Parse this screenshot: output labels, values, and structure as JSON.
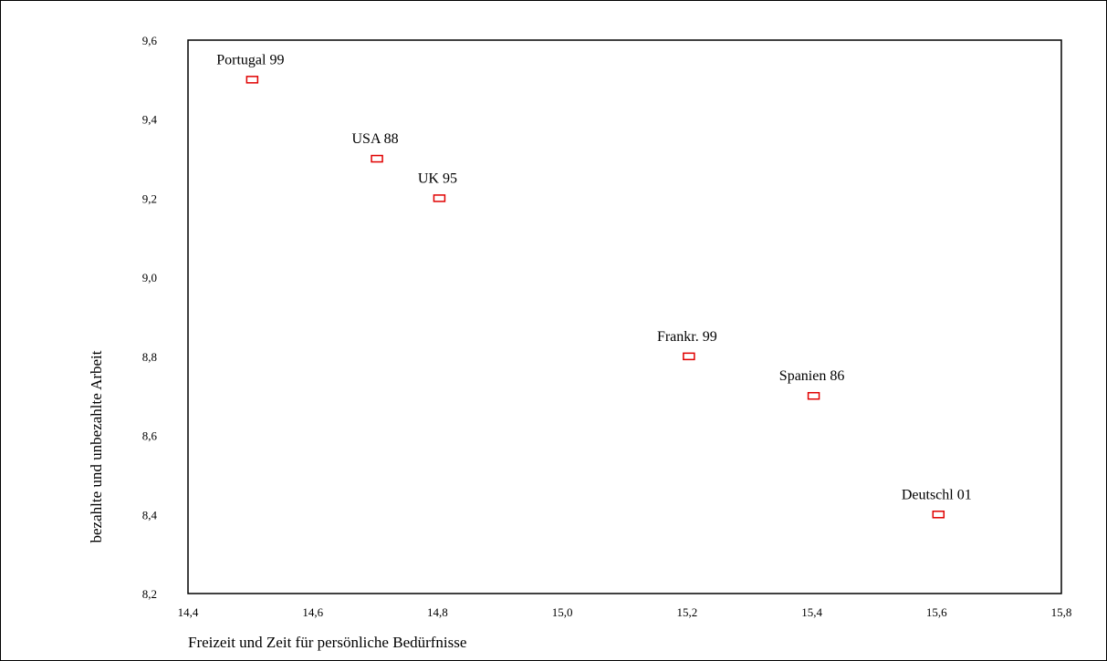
{
  "chart_data": {
    "type": "scatter",
    "xlabel": "Freizeit und Zeit für persönliche Bedürfnisse",
    "ylabel": "bezahlte und unbezahlte Arbeit",
    "xlim": [
      14.4,
      15.8
    ],
    "ylim": [
      8.2,
      9.6
    ],
    "x_ticks": [
      "14,4",
      "14,6",
      "14,8",
      "15,0",
      "15,2",
      "15,4",
      "15,6",
      "15,8"
    ],
    "y_ticks": [
      "8,2",
      "8,4",
      "8,6",
      "8,8",
      "9,0",
      "9,2",
      "9,4",
      "9,6"
    ],
    "grid": false,
    "marker_color": "#e00000",
    "points": [
      {
        "label": "Portugal 99",
        "x": 14.5,
        "y": 9.5
      },
      {
        "label": "USA 88",
        "x": 14.7,
        "y": 9.3
      },
      {
        "label": "UK 95",
        "x": 14.8,
        "y": 9.2
      },
      {
        "label": "Frankr. 99",
        "x": 15.2,
        "y": 8.8
      },
      {
        "label": "Spanien 86",
        "x": 15.4,
        "y": 8.7
      },
      {
        "label": "Deutschl 01",
        "x": 15.6,
        "y": 8.4
      }
    ]
  }
}
